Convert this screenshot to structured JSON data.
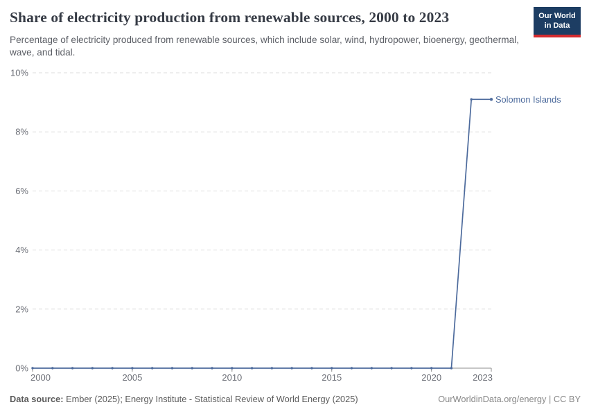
{
  "header": {
    "title": "Share of electricity production from renewable sources, 2000 to 2023",
    "subtitle": "Percentage of electricity produced from renewable sources, which include solar, wind, hydropower, bioenergy, geothermal, wave, and tidal.",
    "logo": {
      "line1": "Our World",
      "line2": "in Data",
      "bg_color": "#1d3d63",
      "accent_color": "#d42b2f"
    }
  },
  "chart_data": {
    "type": "line",
    "title": "Share of electricity production from renewable sources, 2000 to 2023",
    "x": [
      2000,
      2001,
      2002,
      2003,
      2004,
      2005,
      2006,
      2007,
      2008,
      2009,
      2010,
      2011,
      2012,
      2013,
      2014,
      2015,
      2016,
      2017,
      2018,
      2019,
      2020,
      2021,
      2022,
      2023
    ],
    "series": [
      {
        "name": "Solomon Islands",
        "color": "#4c6a9c",
        "values": [
          0,
          0,
          0,
          0,
          0,
          0,
          0,
          0,
          0,
          0,
          0,
          0,
          0,
          0,
          0,
          0,
          0,
          0,
          0,
          0,
          0,
          0,
          9.1,
          9.1
        ]
      }
    ],
    "xticks": [
      2000,
      2005,
      2010,
      2015,
      2020,
      2023
    ],
    "yticks": [
      0,
      2,
      4,
      6,
      8,
      10
    ],
    "ytick_suffix": "%",
    "xlim": [
      2000,
      2023
    ],
    "ylim": [
      0,
      10
    ],
    "grid": "horizontal-dashed",
    "legend_position": "end-of-line-label",
    "colors": {
      "grid": "#dedede",
      "axis": "#8c8c8c",
      "tick_label": "#6c6f77"
    }
  },
  "footer": {
    "source_label": "Data source:",
    "source_text": " Ember (2025); Energy Institute - Statistical Review of World Energy (2025)",
    "credit": "OurWorldinData.org/energy | CC BY"
  }
}
